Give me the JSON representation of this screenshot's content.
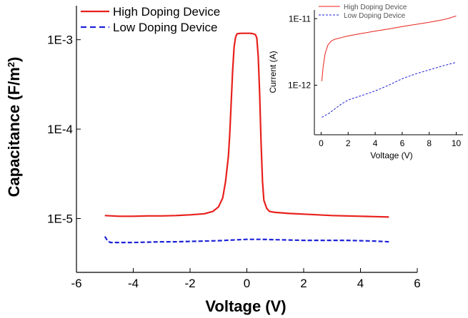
{
  "chart_data": [
    {
      "type": "line",
      "title": "",
      "xlabel": "Voltage (V)",
      "ylabel_text": "Capacitance (F/m",
      "ylabel_sup": "2",
      "ylabel_close": ")",
      "xlim": [
        -6,
        6
      ],
      "ylim": [
        2.5e-06,
        0.0024
      ],
      "yscale": "log",
      "xticks": [
        -6,
        -4,
        -2,
        0,
        2,
        4,
        6
      ],
      "xtick_labels": [
        "-6",
        "-4",
        "-2",
        "0",
        "2",
        "4",
        "6"
      ],
      "yticks": [
        1e-05,
        0.0001,
        0.001
      ],
      "ytick_labels": [
        "1E-5",
        "1E-4",
        "1E-3"
      ],
      "legend_position": "top-left",
      "grid": false,
      "series": [
        {
          "name": "High Doping Device",
          "color": "#e8201c",
          "style": "solid",
          "x": [
            -5,
            -4.5,
            -4,
            -3.5,
            -3,
            -2.5,
            -2,
            -1.5,
            -1.2,
            -1.0,
            -0.85,
            -0.75,
            -0.65,
            -0.6,
            -0.55,
            -0.5,
            -0.45,
            -0.4,
            -0.35,
            -0.3,
            -0.2,
            -0.1,
            0,
            0.1,
            0.2,
            0.3,
            0.35,
            0.4,
            0.45,
            0.5,
            0.55,
            0.6,
            0.7,
            0.8,
            1.0,
            1.5,
            2,
            2.5,
            3,
            3.5,
            4,
            4.5,
            5
          ],
          "y": [
            1.08e-05,
            1.06e-05,
            1.06e-05,
            1.07e-05,
            1.07e-05,
            1.08e-05,
            1.1e-05,
            1.13e-05,
            1.2e-05,
            1.35e-05,
            1.7e-05,
            2.6e-05,
            5e-05,
            9e-05,
            0.0002,
            0.00045,
            0.00082,
            0.00106,
            0.00116,
            0.00117,
            0.00118,
            0.00118,
            0.00118,
            0.00118,
            0.00117,
            0.00114,
            0.00105,
            0.00065,
            0.00025,
            7e-05,
            2.6e-05,
            1.6e-05,
            1.3e-05,
            1.2e-05,
            1.17e-05,
            1.14e-05,
            1.12e-05,
            1.1e-05,
            1.08e-05,
            1.07e-05,
            1.06e-05,
            1.05e-05,
            1.04e-05
          ]
        },
        {
          "name": "Low Doping Device",
          "color": "#1c22d8",
          "style": "dashed",
          "x": [
            -5,
            -4.9,
            -4.8,
            -4.5,
            -4,
            -3.5,
            -3,
            -2.5,
            -2,
            -1.5,
            -1,
            -0.5,
            0,
            0.5,
            1,
            1.5,
            2,
            2.5,
            3,
            3.5,
            4,
            4.5,
            5
          ],
          "y": [
            6.3e-06,
            5.6e-06,
            5.4e-06,
            5.4e-06,
            5.4e-06,
            5.45e-06,
            5.5e-06,
            5.5e-06,
            5.55e-06,
            5.6e-06,
            5.65e-06,
            5.75e-06,
            5.85e-06,
            5.85e-06,
            5.8e-06,
            5.75e-06,
            5.7e-06,
            5.7e-06,
            5.7e-06,
            5.7e-06,
            5.65e-06,
            5.6e-06,
            5.5e-06
          ]
        }
      ]
    },
    {
      "type": "line",
      "title": "",
      "xlabel": "Voltage (V)",
      "ylabel": "Current (A)",
      "xlim": [
        -0.5,
        10.5
      ],
      "ylim": [
        1.8e-13,
        1.35e-11
      ],
      "yscale": "log",
      "xticks": [
        0,
        2,
        4,
        6,
        8,
        10
      ],
      "xtick_labels": [
        "0",
        "2",
        "4",
        "6",
        "8",
        "10"
      ],
      "yticks": [
        1e-12,
        1e-11
      ],
      "ytick_labels": [
        "1E-12",
        "1E-11"
      ],
      "legend_position": "top-left",
      "grid": false,
      "series": [
        {
          "name": "High Doping Device",
          "color": "#e8201c",
          "style": "solid",
          "x": [
            0.05,
            0.15,
            0.3,
            0.5,
            0.75,
            1,
            1.5,
            2,
            3,
            4,
            5,
            6,
            7,
            8,
            9,
            9.5,
            10
          ],
          "y": [
            1.15e-12,
            1.9e-12,
            3e-12,
            4e-12,
            4.6e-12,
            4.9e-12,
            5.2e-12,
            5.5e-12,
            6e-12,
            6.5e-12,
            7e-12,
            7.6e-12,
            8.2e-12,
            8.8e-12,
            9.6e-12,
            1.02e-11,
            1.1e-11
          ]
        },
        {
          "name": "Low Doping Device",
          "color": "#1c22d8",
          "style": "dashed",
          "x": [
            0.05,
            0.3,
            0.6,
            1,
            1.5,
            2,
            3,
            4,
            5,
            6,
            7,
            8,
            9,
            10
          ],
          "y": [
            3.3e-13,
            3.5e-13,
            3.8e-13,
            4.4e-13,
            5.2e-13,
            6e-13,
            7e-13,
            8.2e-13,
            1e-12,
            1.25e-12,
            1.48e-12,
            1.7e-12,
            1.95e-12,
            2.2e-12
          ]
        }
      ]
    }
  ]
}
